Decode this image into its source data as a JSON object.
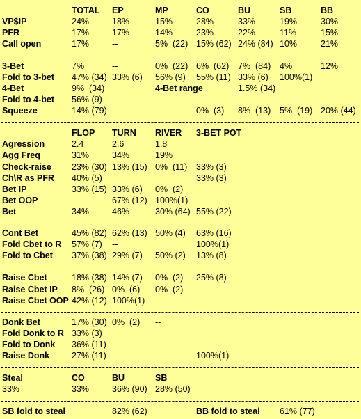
{
  "sections": [
    {
      "rows": [
        {
          "label": "",
          "cells": [
            "TOTAL",
            "EP",
            "MP",
            "CO",
            "BU",
            "SB",
            "BB"
          ],
          "bold": true
        },
        {
          "label": "VP$IP",
          "cells": [
            "24%",
            "18%",
            "15%",
            "28%",
            "33%",
            "19%",
            "30%"
          ]
        },
        {
          "label": "PFR",
          "cells": [
            "17%",
            "17%",
            "14%",
            "23%",
            "22%",
            "11%",
            "15%"
          ]
        },
        {
          "label": "Call open",
          "cells": [
            "17%",
            "--",
            "5%  (22)",
            "15% (62)",
            "24% (84)",
            "10%",
            "21%"
          ]
        }
      ]
    },
    {
      "rows": [
        {
          "label": "3-Bet",
          "cells": [
            "7%",
            "--",
            "0%  (22)",
            "6%  (62)",
            "7%  (84)",
            "4%",
            "12%"
          ]
        },
        {
          "label": "Fold to 3-bet",
          "cells": [
            "47% (34)",
            "33% (6)",
            "56% (9)",
            "55% (11)",
            "33% (6)",
            "100%(1)",
            ""
          ]
        },
        {
          "label": "4-Bet",
          "cells": [
            "9%  (34)",
            "",
            "4-Bet range",
            "",
            "1.5% (34)",
            "",
            ""
          ]
        },
        {
          "label": "Fold to 4-bet",
          "cells": [
            "56% (9)",
            "",
            "",
            "",
            "",
            "",
            ""
          ]
        },
        {
          "label": "Squeeze",
          "cells": [
            "14% (79)",
            "--",
            "--",
            "0%  (3)",
            "8%  (13)",
            "5%  (19)",
            "20% (44)"
          ]
        }
      ]
    },
    {
      "rows": [
        {
          "label": "",
          "cells": [
            "FLOP",
            "TURN",
            "RIVER",
            "3-BET POT"
          ],
          "bold": true
        },
        {
          "label": "Agression",
          "cells": [
            "2.4",
            "2.6",
            "1.8",
            ""
          ]
        },
        {
          "label": "Agg Freq",
          "cells": [
            "31%",
            "34%",
            "19%",
            ""
          ]
        },
        {
          "label": "Check-raise",
          "cells": [
            "23% (30)",
            "13% (15)",
            "0%  (11)",
            "33% (3)"
          ]
        },
        {
          "label": "Ch\\R as PFR",
          "cells": [
            "40% (5)",
            "",
            "",
            "33% (3)"
          ]
        },
        {
          "label": "Bet IP",
          "cells": [
            "33% (15)",
            "33% (6)",
            "0%  (2)",
            ""
          ]
        },
        {
          "label": "Bet OOP",
          "cells": [
            "",
            "67% (12)",
            "100%(1)",
            ""
          ]
        },
        {
          "label": "Bet",
          "cells": [
            "34%",
            "46%",
            "30% (64)",
            "55% (22)"
          ]
        }
      ]
    },
    {
      "rows": [
        {
          "label": "Cont Bet",
          "cells": [
            "45% (82)",
            "62% (13)",
            "50% (4)",
            "63% (16)"
          ]
        },
        {
          "label": "Fold Cbet to R",
          "cells": [
            "57% (7)",
            "--",
            "",
            "100%(1)"
          ]
        },
        {
          "label": "Fold to Cbet",
          "cells": [
            "37% (38)",
            "29% (7)",
            "50% (2)",
            "13% (8)"
          ]
        },
        {
          "label": "",
          "cells": [
            "",
            "",
            "",
            ""
          ]
        },
        {
          "label": "Raise Cbet",
          "cells": [
            "18% (38)",
            "14% (7)",
            "0%  (2)",
            "25% (8)"
          ]
        },
        {
          "label": "Raise Cbet IP",
          "cells": [
            "8%  (26)",
            "0%  (6)",
            "0%  (2)",
            ""
          ]
        },
        {
          "label": "Raise Cbet OOP",
          "cells": [
            "42% (12)",
            "100%(1)",
            "--",
            ""
          ]
        }
      ]
    },
    {
      "rows": [
        {
          "label": "Donk Bet",
          "cells": [
            "17% (30)",
            "0%  (2)",
            "--",
            ""
          ]
        },
        {
          "label": "Fold Donk to R",
          "cells": [
            "33% (3)",
            "",
            "",
            ""
          ]
        },
        {
          "label": "Fold to Donk",
          "cells": [
            "36% (11)",
            "",
            "",
            ""
          ]
        },
        {
          "label": "Raise Donk",
          "cells": [
            "27% (11)",
            "",
            "",
            "100%(1)"
          ]
        }
      ]
    },
    {
      "rows": [
        {
          "label": "Steal",
          "cells": [
            "CO",
            "BU",
            "SB"
          ],
          "bold": true
        },
        {
          "label": "33%",
          "cells": [
            "33%",
            "36% (90)",
            "28% (50)"
          ],
          "plainLabel": true
        }
      ]
    },
    {
      "rows": [
        {
          "label": "SB fold to steal",
          "cells": [
            "82% (62)",
            "BB fold to steal",
            "61% (77)"
          ],
          "boldIdx": [
            1
          ]
        }
      ]
    }
  ]
}
